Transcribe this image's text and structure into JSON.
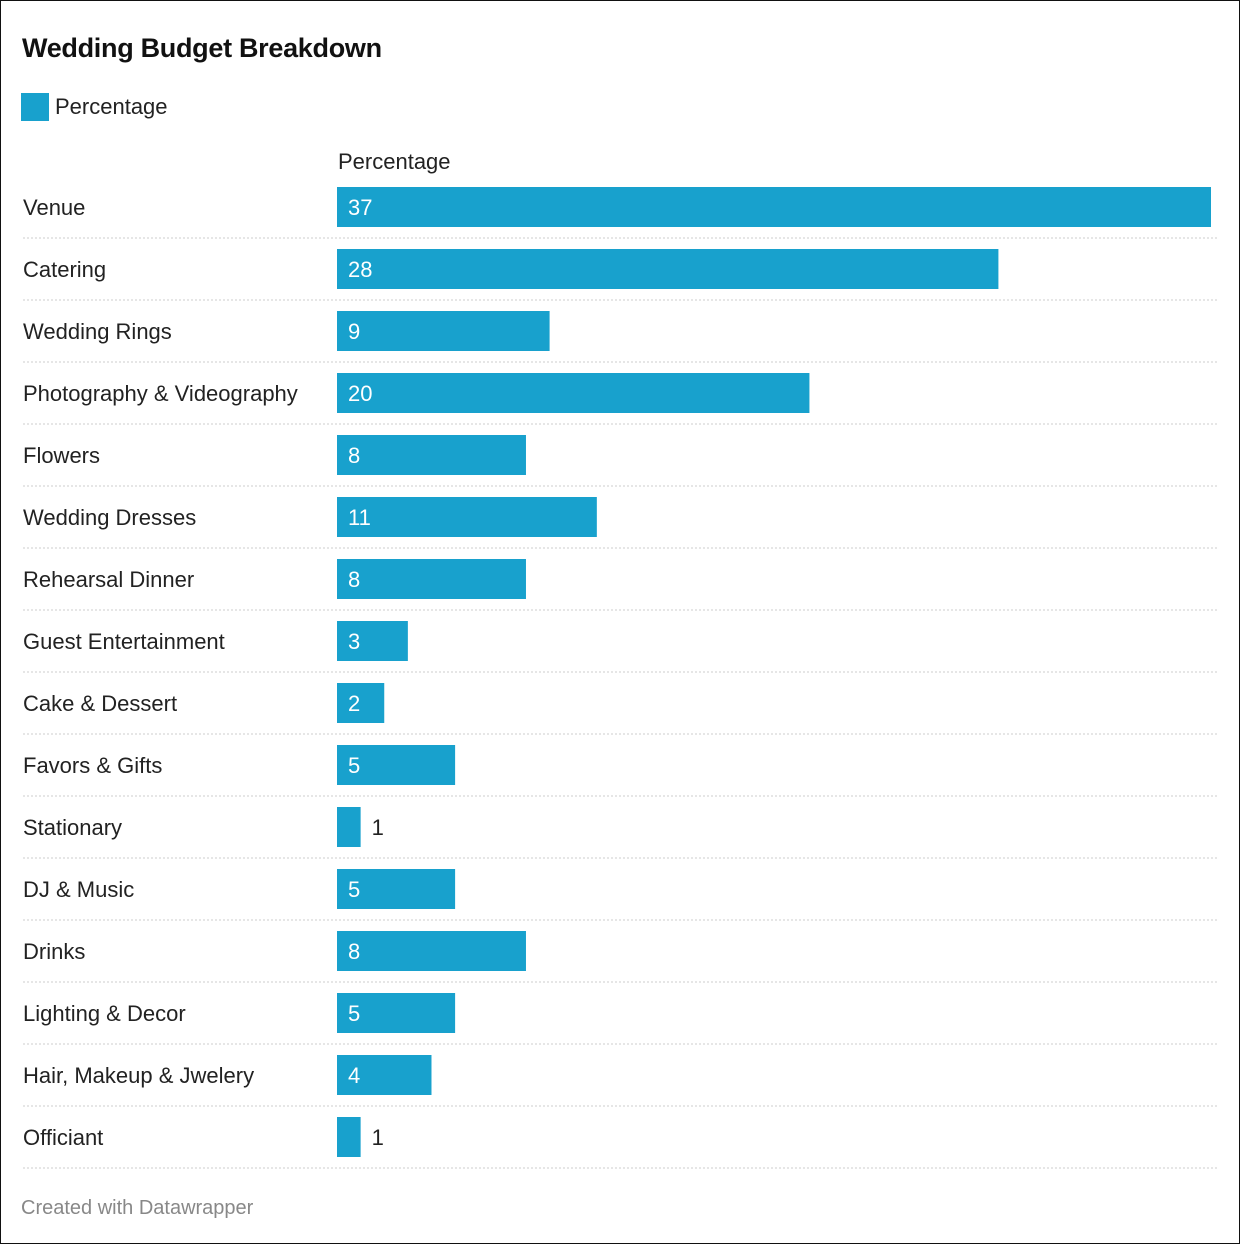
{
  "chart_data": {
    "type": "bar",
    "orientation": "horizontal",
    "title": "Wedding Budget Breakdown",
    "legend": [
      "Percentage"
    ],
    "column_header": "Percentage",
    "color": "#18a1cd",
    "categories": [
      "Venue",
      "Catering",
      "Wedding Rings",
      "Photography & Videography",
      "Flowers",
      "Wedding Dresses",
      "Rehearsal Dinner",
      "Guest Entertainment",
      "Cake & Dessert",
      "Favors & Gifts",
      "Stationary",
      "DJ & Music",
      "Drinks",
      "Lighting & Decor",
      "Hair, Makeup & Jwelery",
      "Officiant"
    ],
    "series": [
      {
        "name": "Percentage",
        "values": [
          37,
          28,
          9,
          20,
          8,
          11,
          8,
          3,
          2,
          5,
          1,
          5,
          8,
          5,
          4,
          1
        ]
      }
    ],
    "xlim": [
      0,
      37
    ],
    "grid": false,
    "legend_placement": "top-left"
  },
  "footer": "Created with Datawrapper"
}
